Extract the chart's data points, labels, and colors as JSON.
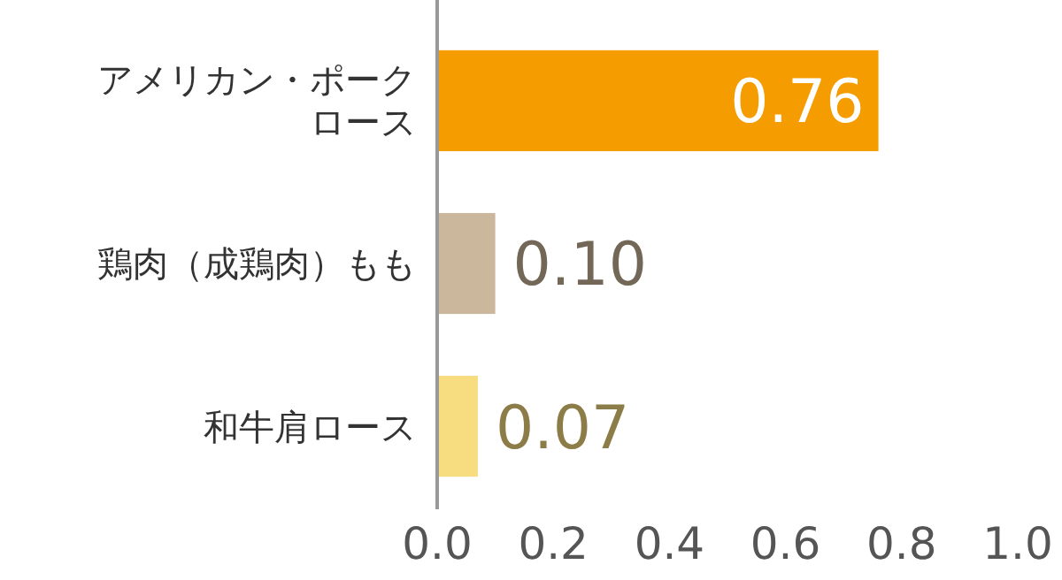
{
  "chart_data": {
    "type": "bar",
    "orientation": "horizontal",
    "categories": [
      "アメリカン・ポークロース",
      "鶏肉（成鶏肉）もも",
      "和牛肩ロース"
    ],
    "values": [
      0.76,
      0.1,
      0.07
    ],
    "value_labels": [
      "0.76",
      "0.10",
      "0.07"
    ],
    "colors": [
      "#f59c00",
      "#cbb89c",
      "#f8dc80"
    ],
    "xlim": [
      0,
      1
    ],
    "xticks": [
      {
        "value": 0,
        "label": "0.0"
      },
      {
        "value": 0.2,
        "label": "0.2"
      },
      {
        "value": 0.4,
        "label": "0.4"
      },
      {
        "value": 0.6,
        "label": "0.6"
      },
      {
        "value": 0.8,
        "label": "0.8"
      },
      {
        "value": 1,
        "label": "1.0"
      }
    ],
    "grid": false
  }
}
